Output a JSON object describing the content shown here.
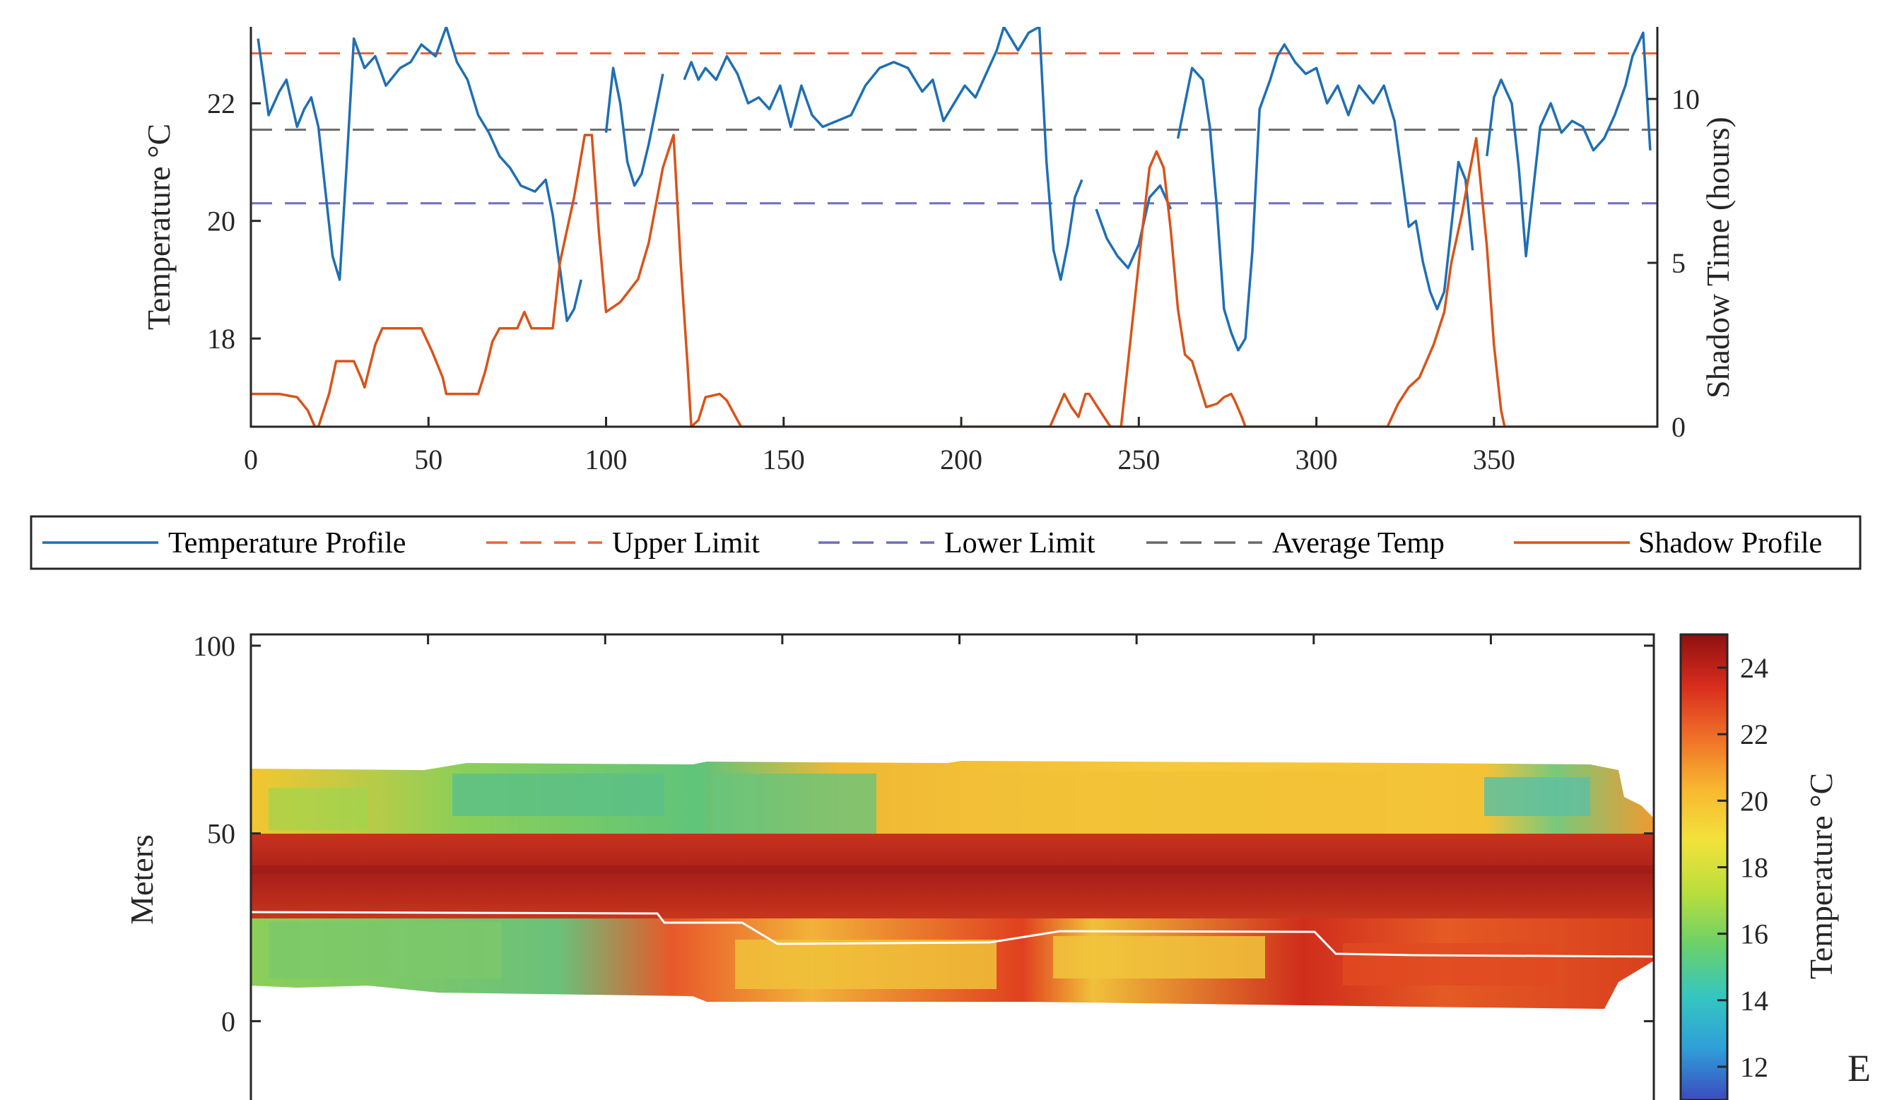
{
  "chart_data": [
    {
      "type": "line",
      "xlabel": "",
      "ylabel": "Temperature °C",
      "y2label": "Shadow Time (hours)",
      "xlim": [
        0,
        396
      ],
      "ylim": [
        16.5,
        23.3
      ],
      "y2lim": [
        0,
        12.2
      ],
      "xticks": [
        0,
        50,
        100,
        150,
        200,
        250,
        300,
        350
      ],
      "yticks": [
        18,
        20,
        22
      ],
      "y2ticks": [
        0,
        5,
        10
      ],
      "grid": false,
      "legend": {
        "placement": "below",
        "entries": [
          "Temperature Profile",
          "Upper Limit",
          "Lower Limit",
          "Average Temp",
          "Shadow Profile"
        ]
      },
      "colors": {
        "temperature": "#1f6fb4",
        "upper": "#e8643c",
        "lower": "#6e6ebc",
        "average": "#6a6a6a",
        "shadow": "#d95319"
      },
      "reference_lines": [
        {
          "name": "Upper Limit",
          "y": 22.85
        },
        {
          "name": "Lower Limit",
          "y": 20.3
        },
        {
          "name": "Average Temp",
          "y": 21.55
        }
      ],
      "series": [
        {
          "name": "Temperature Profile",
          "axis": "left",
          "segments": [
            [
              [
                2,
                23.1
              ],
              [
                5,
                21.8
              ],
              [
                8,
                22.2
              ],
              [
                10,
                22.4
              ],
              [
                13,
                21.6
              ],
              [
                15,
                21.9
              ],
              [
                17,
                22.1
              ],
              [
                19,
                21.6
              ],
              [
                21,
                20.5
              ],
              [
                23,
                19.4
              ],
              [
                25,
                19.0
              ],
              [
                27,
                21.0
              ],
              [
                29,
                23.1
              ],
              [
                32,
                22.6
              ],
              [
                35,
                22.8
              ],
              [
                38,
                22.3
              ],
              [
                42,
                22.6
              ],
              [
                45,
                22.7
              ],
              [
                48,
                23.0
              ],
              [
                52,
                22.8
              ],
              [
                55,
                23.3
              ],
              [
                58,
                22.7
              ],
              [
                61,
                22.4
              ],
              [
                64,
                21.8
              ],
              [
                67,
                21.5
              ],
              [
                70,
                21.1
              ],
              [
                73,
                20.9
              ],
              [
                76,
                20.6
              ],
              [
                80,
                20.5
              ],
              [
                83,
                20.7
              ],
              [
                85,
                20.1
              ],
              [
                87,
                19.2
              ],
              [
                89,
                18.3
              ],
              [
                91,
                18.5
              ],
              [
                93,
                19.0
              ]
            ],
            [
              [
                100,
                21.5
              ],
              [
                102,
                22.6
              ],
              [
                104,
                22.0
              ],
              [
                106,
                21.0
              ],
              [
                108,
                20.6
              ],
              [
                110,
                20.8
              ],
              [
                112,
                21.3
              ],
              [
                114,
                21.9
              ],
              [
                116,
                22.5
              ]
            ],
            [
              [
                122,
                22.4
              ],
              [
                124,
                22.7
              ],
              [
                126,
                22.4
              ],
              [
                128,
                22.6
              ],
              [
                131,
                22.4
              ],
              [
                134,
                22.8
              ],
              [
                137,
                22.5
              ],
              [
                140,
                22.0
              ],
              [
                143,
                22.1
              ],
              [
                146,
                21.9
              ],
              [
                149,
                22.3
              ],
              [
                152,
                21.6
              ],
              [
                155,
                22.3
              ],
              [
                158,
                21.8
              ],
              [
                161,
                21.6
              ],
              [
                165,
                21.7
              ],
              [
                169,
                21.8
              ],
              [
                173,
                22.3
              ],
              [
                177,
                22.6
              ],
              [
                181,
                22.7
              ],
              [
                185,
                22.6
              ],
              [
                189,
                22.2
              ],
              [
                192,
                22.4
              ],
              [
                195,
                21.7
              ],
              [
                198,
                22.0
              ],
              [
                201,
                22.3
              ],
              [
                204,
                22.1
              ],
              [
                207,
                22.5
              ],
              [
                210,
                22.9
              ],
              [
                212,
                23.3
              ],
              [
                216,
                22.9
              ],
              [
                219,
                23.2
              ],
              [
                222,
                23.3
              ],
              [
                224,
                21.0
              ],
              [
                226,
                19.5
              ],
              [
                228,
                19.0
              ],
              [
                230,
                19.6
              ],
              [
                232,
                20.4
              ],
              [
                234,
                20.7
              ]
            ],
            [
              [
                238,
                20.2
              ],
              [
                241,
                19.7
              ],
              [
                244,
                19.4
              ],
              [
                247,
                19.2
              ],
              [
                250,
                19.6
              ],
              [
                253,
                20.4
              ],
              [
                256,
                20.6
              ],
              [
                259,
                20.2
              ]
            ],
            [
              [
                261,
                21.4
              ],
              [
                263,
                22.0
              ],
              [
                265,
                22.6
              ],
              [
                268,
                22.4
              ],
              [
                270,
                21.6
              ],
              [
                272,
                20.2
              ],
              [
                274,
                18.5
              ],
              [
                276,
                18.1
              ],
              [
                278,
                17.8
              ],
              [
                280,
                18.0
              ],
              [
                282,
                19.5
              ],
              [
                284,
                21.9
              ],
              [
                287,
                22.4
              ],
              [
                289,
                22.8
              ],
              [
                291,
                23.0
              ],
              [
                294,
                22.7
              ],
              [
                297,
                22.5
              ],
              [
                300,
                22.6
              ],
              [
                303,
                22.0
              ],
              [
                306,
                22.3
              ],
              [
                309,
                21.8
              ],
              [
                312,
                22.3
              ],
              [
                316,
                22.0
              ],
              [
                319,
                22.3
              ],
              [
                322,
                21.7
              ],
              [
                324,
                20.8
              ],
              [
                326,
                19.9
              ],
              [
                328,
                20.0
              ],
              [
                330,
                19.3
              ],
              [
                332,
                18.8
              ],
              [
                334,
                18.5
              ],
              [
                336,
                18.8
              ],
              [
                338,
                19.9
              ],
              [
                340,
                21.0
              ],
              [
                342,
                20.7
              ],
              [
                344,
                19.5
              ]
            ],
            [
              [
                348,
                21.1
              ],
              [
                350,
                22.1
              ],
              [
                352,
                22.4
              ],
              [
                355,
                22.0
              ],
              [
                357,
                20.9
              ],
              [
                359,
                19.4
              ],
              [
                361,
                20.5
              ],
              [
                363,
                21.6
              ],
              [
                366,
                22.0
              ],
              [
                369,
                21.5
              ],
              [
                372,
                21.7
              ],
              [
                375,
                21.6
              ],
              [
                378,
                21.2
              ],
              [
                381,
                21.4
              ],
              [
                384,
                21.8
              ],
              [
                387,
                22.3
              ],
              [
                389,
                22.8
              ],
              [
                392,
                23.2
              ],
              [
                394,
                21.2
              ]
            ]
          ]
        },
        {
          "name": "Shadow Profile",
          "axis": "right",
          "points": [
            [
              0,
              1.0
            ],
            [
              8,
              1.0
            ],
            [
              13,
              0.9
            ],
            [
              16,
              0.5
            ],
            [
              18,
              0.0
            ],
            [
              19,
              0.0
            ],
            [
              22,
              1.0
            ],
            [
              24,
              2.0
            ],
            [
              29,
              2.0
            ],
            [
              31,
              1.5
            ],
            [
              32,
              1.2
            ],
            [
              35,
              2.5
            ],
            [
              37,
              3.0
            ],
            [
              48,
              3.0
            ],
            [
              51,
              2.3
            ],
            [
              54,
              1.5
            ],
            [
              55,
              1.0
            ],
            [
              64,
              1.0
            ],
            [
              66,
              1.7
            ],
            [
              68,
              2.6
            ],
            [
              70,
              3.0
            ],
            [
              75,
              3.0
            ],
            [
              77,
              3.5
            ],
            [
              79,
              3.0
            ],
            [
              85,
              3.0
            ],
            [
              87,
              5.0
            ],
            [
              89,
              6.0
            ],
            [
              91,
              7.0
            ],
            [
              94,
              8.9
            ],
            [
              96,
              8.9
            ],
            [
              98,
              5.9
            ],
            [
              100,
              3.5
            ],
            [
              104,
              3.8
            ],
            [
              109,
              4.5
            ],
            [
              112,
              5.6
            ],
            [
              116,
              7.9
            ],
            [
              119,
              8.9
            ],
            [
              121,
              5.0
            ],
            [
              123,
              1.8
            ],
            [
              124,
              0.0
            ],
            [
              126,
              0.2
            ],
            [
              128,
              0.9
            ],
            [
              132,
              1.0
            ],
            [
              134,
              0.8
            ],
            [
              138,
              0.0
            ],
            [
              225,
              0.0
            ],
            [
              229,
              1.0
            ],
            [
              231,
              0.6
            ],
            [
              233,
              0.3
            ],
            [
              235,
              1.0
            ],
            [
              236,
              1.0
            ],
            [
              239,
              0.5
            ],
            [
              242,
              0.0
            ],
            [
              245,
              0.0
            ],
            [
              248,
              3.0
            ],
            [
              251,
              6.0
            ],
            [
              253,
              7.9
            ],
            [
              255,
              8.4
            ],
            [
              257,
              7.9
            ],
            [
              259,
              6.0
            ],
            [
              261,
              3.6
            ],
            [
              263,
              2.2
            ],
            [
              265,
              2.0
            ],
            [
              267,
              1.3
            ],
            [
              269,
              0.6
            ],
            [
              272,
              0.7
            ],
            [
              274,
              0.9
            ],
            [
              276,
              1.0
            ],
            [
              277,
              0.8
            ],
            [
              279,
              0.3
            ],
            [
              280,
              0.0
            ],
            [
              320,
              0.0
            ],
            [
              323,
              0.7
            ],
            [
              326,
              1.2
            ],
            [
              329,
              1.5
            ],
            [
              333,
              2.5
            ],
            [
              336,
              3.5
            ],
            [
              338,
              5.0
            ],
            [
              341,
              6.5
            ],
            [
              343,
              7.7
            ],
            [
              345,
              8.8
            ],
            [
              348,
              5.5
            ],
            [
              350,
              2.5
            ],
            [
              352,
              0.5
            ],
            [
              353,
              0.0
            ],
            [
              396,
              0.0
            ]
          ]
        }
      ]
    },
    {
      "type": "heatmap",
      "xlabel": "",
      "ylabel": "Meters",
      "xlim": [
        0,
        396
      ],
      "ylim": [
        -21,
        103
      ],
      "yticks": [
        0,
        50,
        100
      ],
      "colorbar": {
        "label": "Temperature °C",
        "range": [
          11,
          25
        ],
        "ticks": [
          12,
          14,
          16,
          18,
          20,
          22,
          24
        ]
      },
      "colormap": [
        "#3b4cc0",
        "#2f9fd8",
        "#35c6c0",
        "#6bd06a",
        "#b9de3c",
        "#f2e23b",
        "#f8b830",
        "#f07028",
        "#d82d1e",
        "#8e1010"
      ]
    }
  ],
  "annotations": {
    "corner_letter": "E"
  }
}
